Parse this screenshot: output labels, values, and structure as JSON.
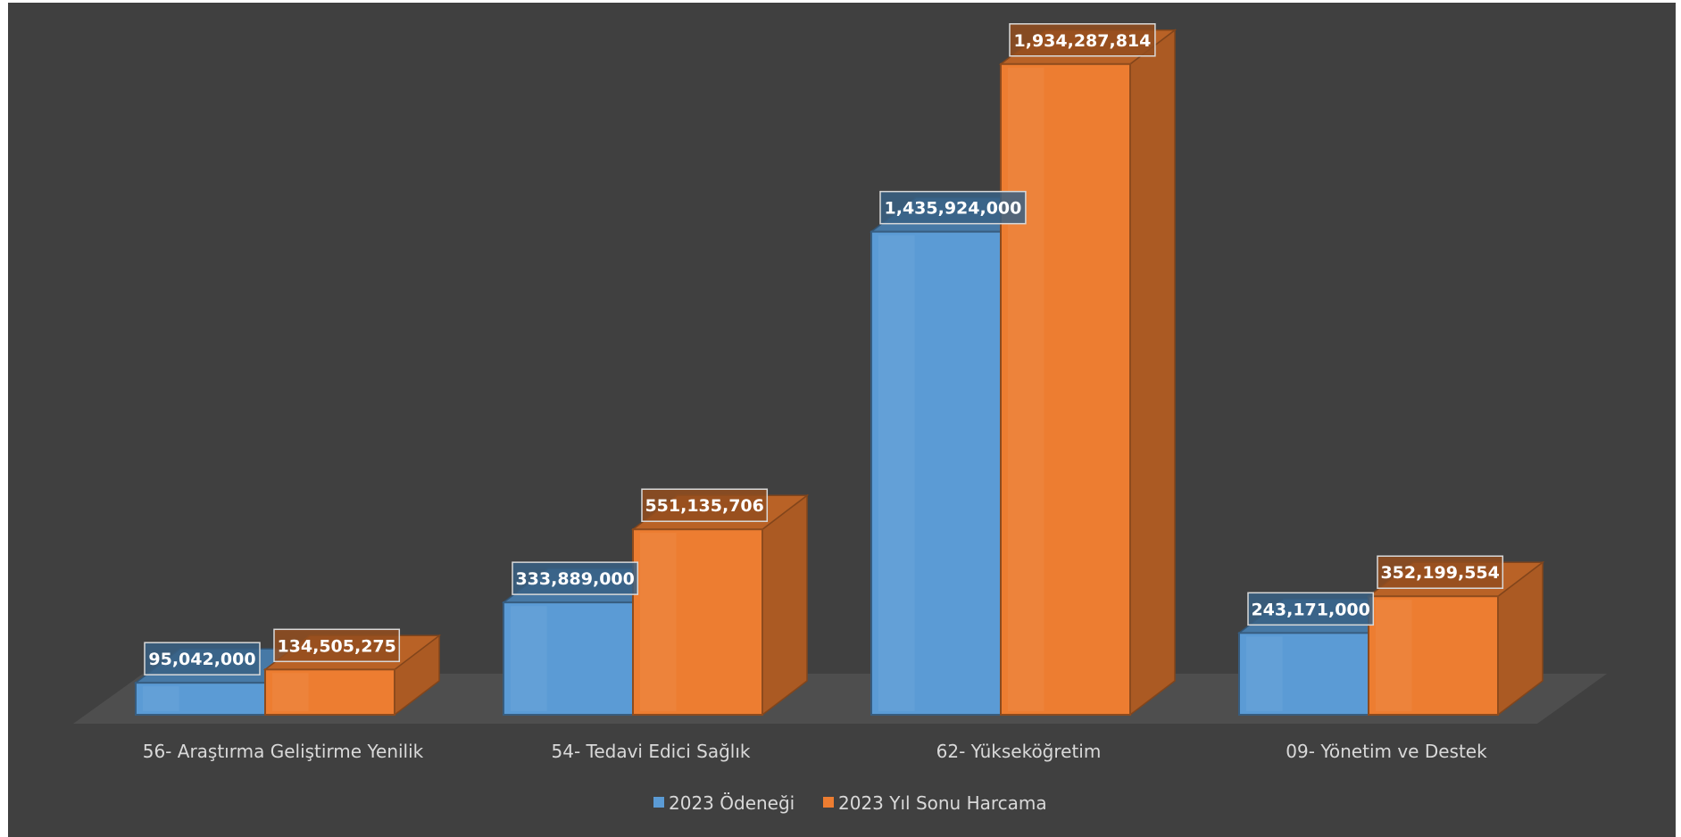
{
  "chart_data": {
    "type": "bar",
    "style": "3d-clustered-column",
    "categories": [
      "56- Araştırma Geliştirme Yenilik",
      "54- Tedavi Edici Sağlık",
      "62- Yükseköğretim",
      "09- Yönetim ve Destek"
    ],
    "series": [
      {
        "name": "2023 Ödeneği",
        "color": "#5b9bd5",
        "values": [
          95042000,
          333889000,
          1435924000,
          243171000
        ],
        "labels": [
          "95,042,000",
          "333,889,000",
          "1,435,924,000",
          "243,171,000"
        ]
      },
      {
        "name": "2023 Yıl Sonu Harcama",
        "color": "#ed7d31",
        "values": [
          134505275,
          551135706,
          1934287814,
          352199554
        ],
        "labels": [
          "134,505,275",
          "551,135,706",
          "1,934,287,814",
          "352,199,554"
        ]
      }
    ],
    "ylim": [
      0,
      2000000000
    ],
    "grid": false,
    "legend": "bottom",
    "background": "#404040"
  }
}
